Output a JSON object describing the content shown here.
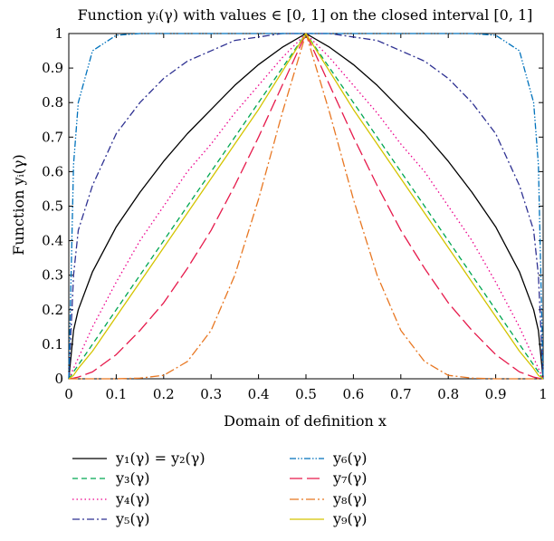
{
  "chart_data": {
    "type": "line",
    "title": "Function yᵢ(γ) with values ∈ [0, 1] on the closed interval [0, 1]",
    "xlabel": "Domain of definition x",
    "ylabel": "Function yᵢ(γ)",
    "xlim": [
      0,
      1
    ],
    "ylim": [
      0,
      1
    ],
    "x_ticks": [
      "0",
      "0.1",
      "0.2",
      "0.3",
      "0.4",
      "0.5",
      "0.6",
      "0.7",
      "0.8",
      "0.9",
      "1"
    ],
    "y_ticks": [
      "0",
      "0.1",
      "0.2",
      "0.3",
      "0.4",
      "0.5",
      "0.6",
      "0.7",
      "0.8",
      "0.9",
      "1"
    ],
    "grid": false,
    "legend_position": "below",
    "x": [
      0,
      0.01,
      0.02,
      0.05,
      0.1,
      0.15,
      0.2,
      0.25,
      0.3,
      0.35,
      0.4,
      0.45,
      0.5,
      0.55,
      0.6,
      0.65,
      0.7,
      0.75,
      0.8,
      0.85,
      0.9,
      0.95,
      0.98,
      0.99,
      1
    ],
    "series": [
      {
        "name": "y₁(γ) = y₂(γ)",
        "color": "#000000",
        "dash": "",
        "values": [
          0,
          0.14,
          0.2,
          0.31,
          0.44,
          0.54,
          0.63,
          0.71,
          0.78,
          0.85,
          0.91,
          0.96,
          1,
          0.96,
          0.91,
          0.85,
          0.78,
          0.71,
          0.63,
          0.54,
          0.44,
          0.31,
          0.2,
          0.14,
          0
        ]
      },
      {
        "name": "y₃(γ)",
        "color": "#00a651",
        "dash": "6,4",
        "values": [
          0,
          0.02,
          0.04,
          0.1,
          0.2,
          0.3,
          0.4,
          0.5,
          0.6,
          0.7,
          0.8,
          0.9,
          1,
          0.9,
          0.8,
          0.7,
          0.6,
          0.5,
          0.4,
          0.3,
          0.2,
          0.1,
          0.04,
          0.02,
          0
        ]
      },
      {
        "name": "y₄(γ)",
        "color": "#ec008c",
        "dash": "1.5,3",
        "values": [
          0,
          0.03,
          0.06,
          0.15,
          0.28,
          0.4,
          0.5,
          0.6,
          0.68,
          0.77,
          0.85,
          0.93,
          1,
          0.93,
          0.85,
          0.77,
          0.68,
          0.6,
          0.5,
          0.4,
          0.28,
          0.15,
          0.06,
          0.03,
          0
        ]
      },
      {
        "name": "y₅(γ)",
        "color": "#2e3192",
        "dash": "8,3,2,3",
        "values": [
          0,
          0.3,
          0.43,
          0.56,
          0.71,
          0.8,
          0.87,
          0.92,
          0.95,
          0.98,
          0.99,
          1,
          1,
          1,
          0.99,
          0.98,
          0.95,
          0.92,
          0.87,
          0.8,
          0.71,
          0.56,
          0.43,
          0.3,
          0
        ]
      },
      {
        "name": "y₆(γ)",
        "color": "#0072bc",
        "dash": "7,2,1.5,2,1.5,2",
        "values": [
          0,
          0.62,
          0.8,
          0.95,
          0.995,
          1,
          1,
          1,
          1,
          1,
          1,
          1,
          1,
          1,
          1,
          1,
          1,
          1,
          1,
          1,
          0.995,
          0.95,
          0.8,
          0.62,
          0
        ]
      },
      {
        "name": "y₇(γ)",
        "color": "#e6194b",
        "dash": "14,5",
        "values": [
          0,
          0.002,
          0.005,
          0.02,
          0.07,
          0.14,
          0.22,
          0.32,
          0.43,
          0.56,
          0.7,
          0.85,
          1,
          0.85,
          0.7,
          0.56,
          0.43,
          0.32,
          0.22,
          0.14,
          0.07,
          0.02,
          0.005,
          0.002,
          0
        ]
      },
      {
        "name": "y₈(γ)",
        "color": "#e87722",
        "dash": "10,3,2,3",
        "values": [
          0,
          0,
          0,
          0,
          0,
          0.002,
          0.01,
          0.05,
          0.14,
          0.3,
          0.52,
          0.77,
          1,
          0.77,
          0.52,
          0.3,
          0.14,
          0.05,
          0.01,
          0.002,
          0,
          0,
          0,
          0,
          0
        ]
      },
      {
        "name": "y₉(γ)",
        "color": "#d4c400",
        "dash": "",
        "values": [
          0,
          0.01,
          0.03,
          0.08,
          0.18,
          0.28,
          0.38,
          0.48,
          0.58,
          0.68,
          0.78,
          0.89,
          1,
          0.89,
          0.78,
          0.68,
          0.58,
          0.48,
          0.38,
          0.28,
          0.18,
          0.08,
          0.03,
          0.01,
          0
        ]
      }
    ]
  }
}
